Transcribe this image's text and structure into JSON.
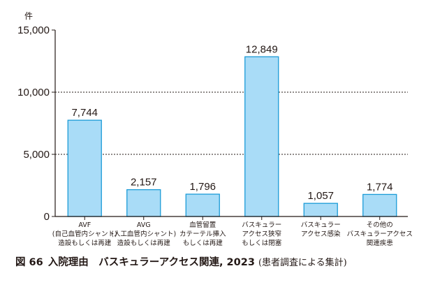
{
  "chart_data": {
    "type": "bar",
    "unit_label": "件",
    "categories": [
      [
        "AVF",
        "(自己血管内シャント)",
        "造設もしくは再建"
      ],
      [
        "AVG",
        "(人工血管内シャント)",
        "造設もしくは再建"
      ],
      [
        "血管留置",
        "カテーテル挿入",
        "もしくは再建"
      ],
      [
        "バスキュラー",
        "アクセス狭窄",
        "もしくは閉塞"
      ],
      [
        "バスキュラー",
        "アクセス感染"
      ],
      [
        "その他の",
        "バスキュラーアクセス",
        "関連疾患"
      ]
    ],
    "values": [
      7744,
      2157,
      1796,
      12849,
      1057,
      1774
    ],
    "value_labels": [
      "7,744",
      "2,157",
      "1,796",
      "12,849",
      "1,057",
      "1,774"
    ],
    "yticks": [
      0,
      5000,
      10000,
      15000
    ],
    "ytick_labels": [
      "0",
      "5,000",
      "10,000",
      "15,000"
    ],
    "ylim": [
      0,
      15000
    ],
    "dashed_gridlines": [
      5000,
      10000
    ],
    "bar_color": "#a9dcf7",
    "bar_edge_color": "#1b9bd7"
  },
  "caption": {
    "figure_label": "図 66",
    "title": "入院理由　バスキュラーアクセス関連, 2023",
    "note": "(患者調査による集計)"
  }
}
